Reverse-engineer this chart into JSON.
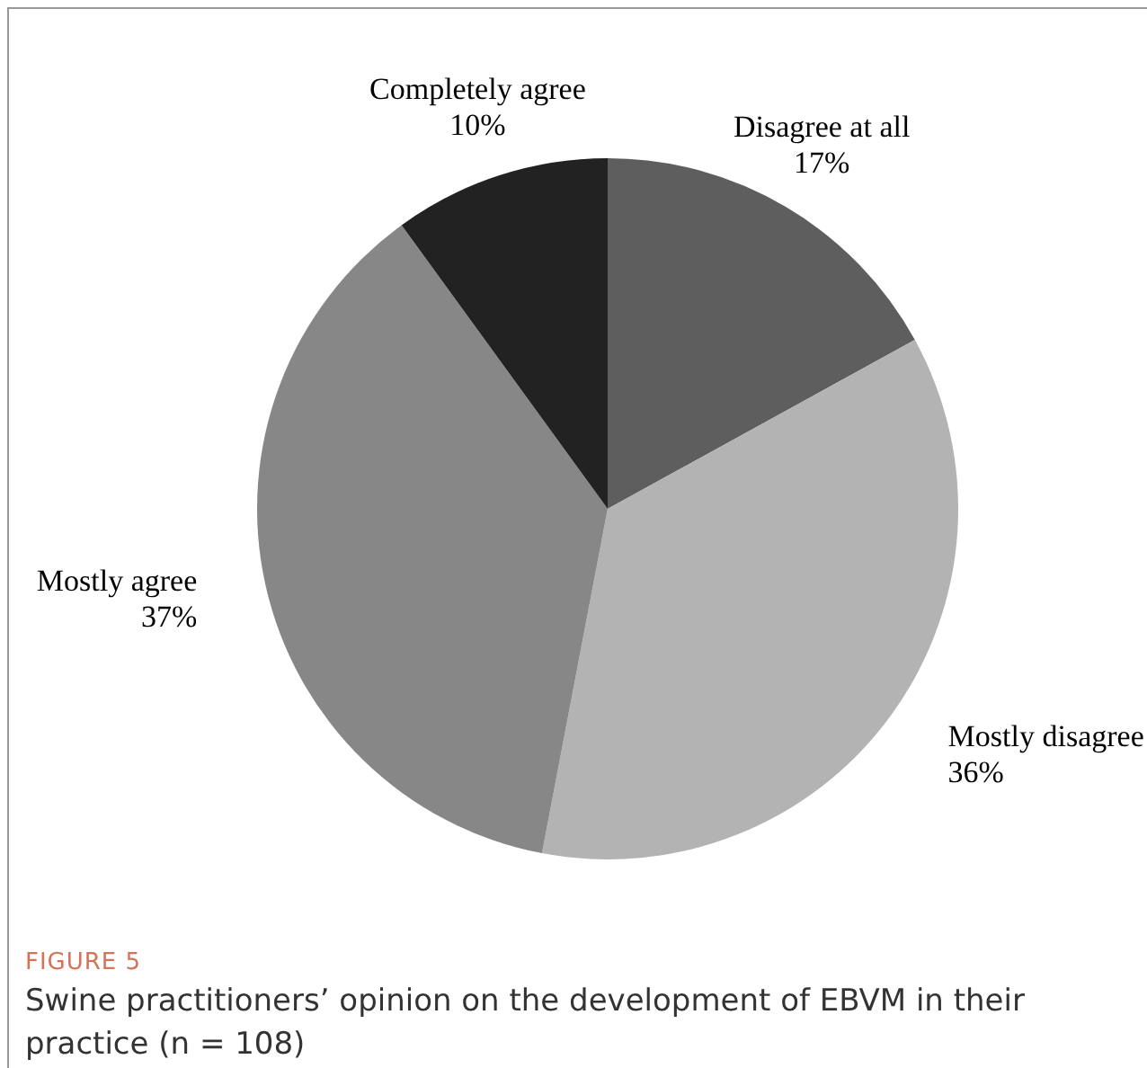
{
  "chart_data": {
    "type": "pie",
    "categories": [
      "Disagree at all",
      "Mostly disagree",
      "Mostly agree",
      "Completely agree"
    ],
    "values": [
      17,
      36,
      37,
      10
    ],
    "colors": [
      "#5e5e5e",
      "#b3b3b3",
      "#878787",
      "#222222"
    ],
    "value_labels": [
      "17%",
      "36%",
      "37%",
      "10%"
    ],
    "legend": false,
    "annotations": [
      "FIGURE 5",
      "Swine practitioners’ opinion on the development of EBVM in their practice (n = 108)"
    ]
  }
}
